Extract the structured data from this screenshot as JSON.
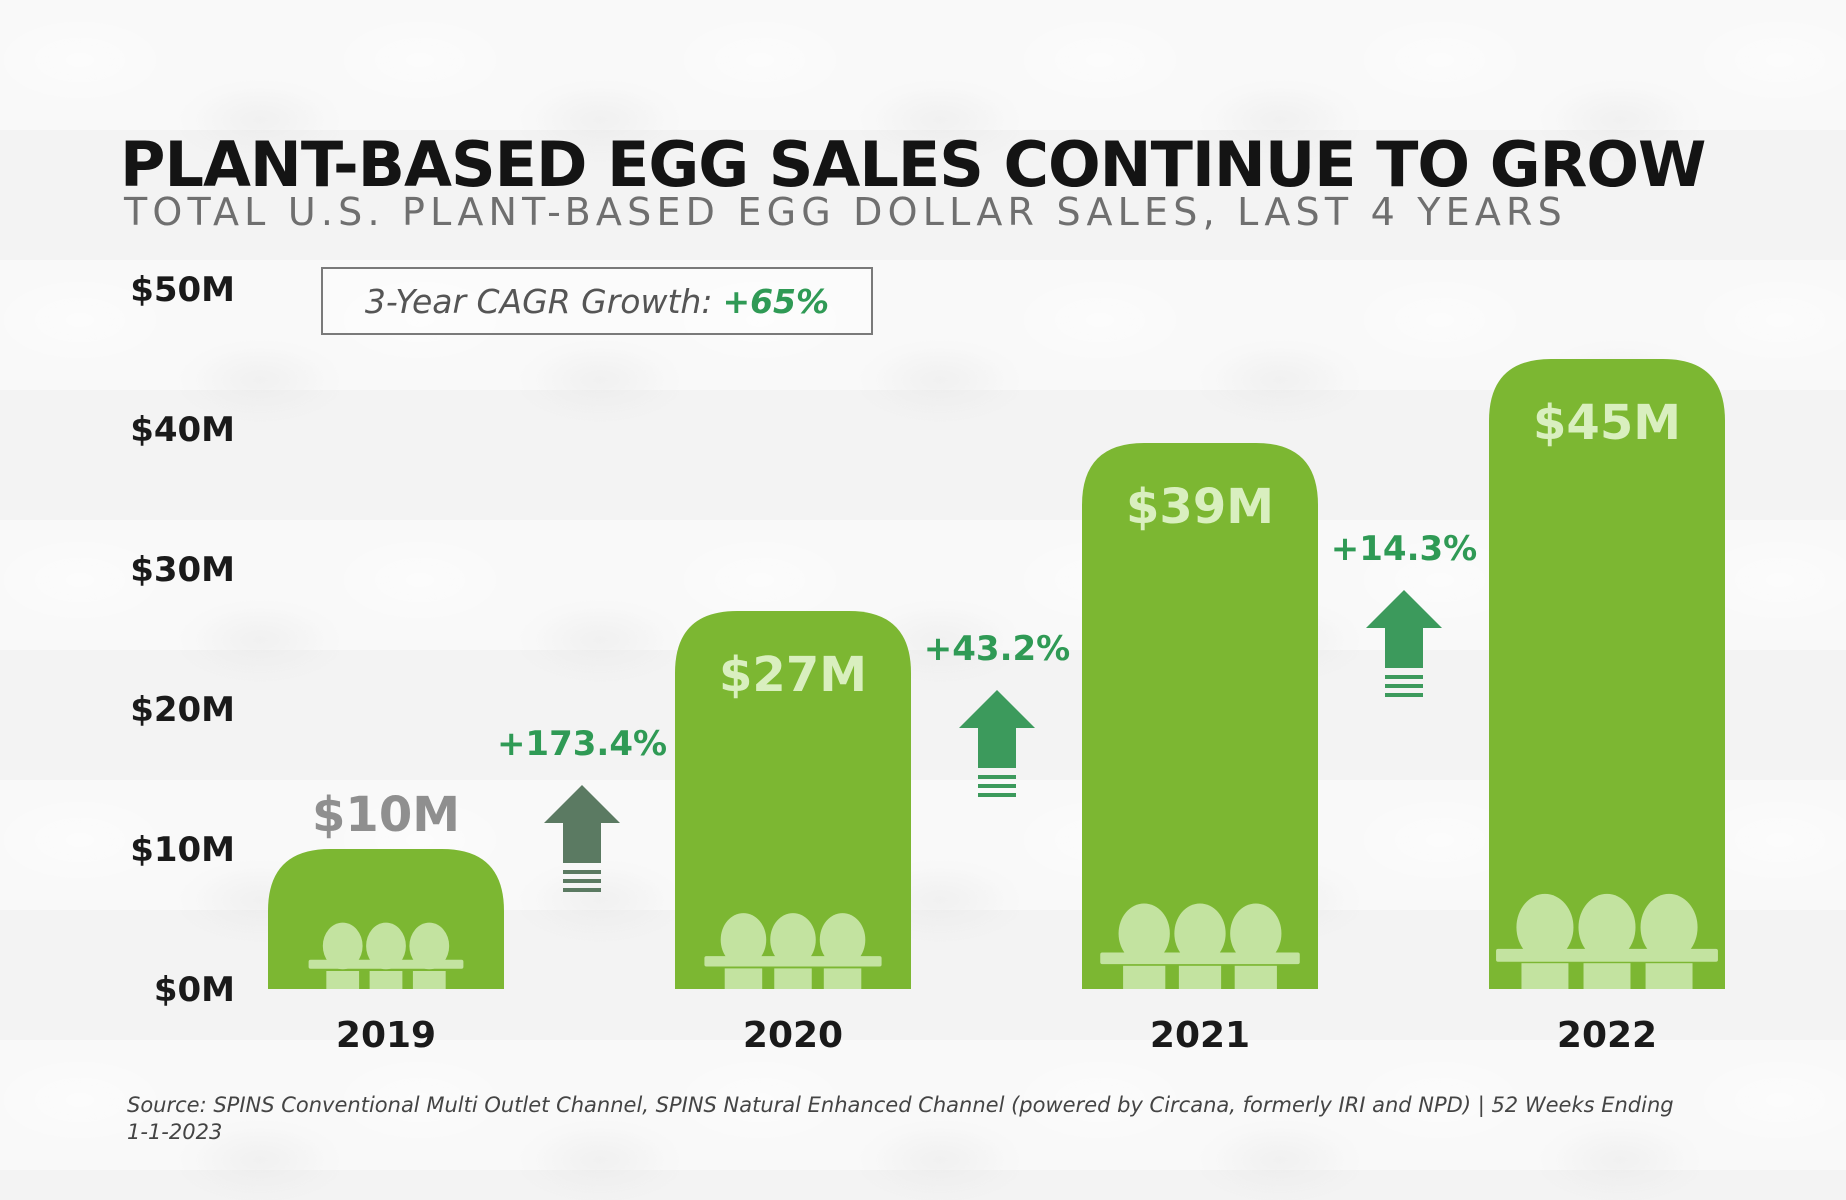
{
  "title": "PLANT-BASED EGG SALES CONTINUE TO GROW",
  "subtitle": "TOTAL U.S. PLANT-BASED EGG DOLLAR SALES, LAST 4 YEARS",
  "cagr": {
    "label": "3-Year CAGR Growth:",
    "value": "+65%"
  },
  "source": "Source: SPINS Conventional Multi Outlet Channel, SPINS Natural Enhanced Channel (powered by Circana, formerly IRI and NPD) | 52 Weeks Ending 1-1-2023",
  "colors": {
    "bar": "#7cb732",
    "bar_label": "#d9efbf",
    "first_bar_label": "#8f8f8f",
    "growth_text": "#2f9a55",
    "egg": "#c3e3a0",
    "arrow_dark": "#5b7a62",
    "arrow_green": "#3c9a5c"
  },
  "chart_data": {
    "type": "bar",
    "categories": [
      "2019",
      "2020",
      "2021",
      "2022"
    ],
    "values": [
      10,
      27,
      39,
      45
    ],
    "data_labels": [
      "$10M",
      "$27M",
      "$39M",
      "$45M"
    ],
    "ylim": [
      0,
      50
    ],
    "y_ticks": [
      0,
      10,
      20,
      30,
      40,
      50
    ],
    "y_tick_labels": [
      "$0M",
      "$10M",
      "$20M",
      "$30M",
      "$40M",
      "$50M"
    ],
    "growth_labels": [
      "+173.4%",
      "+43.2%",
      "+14.3%"
    ],
    "grid": false
  }
}
